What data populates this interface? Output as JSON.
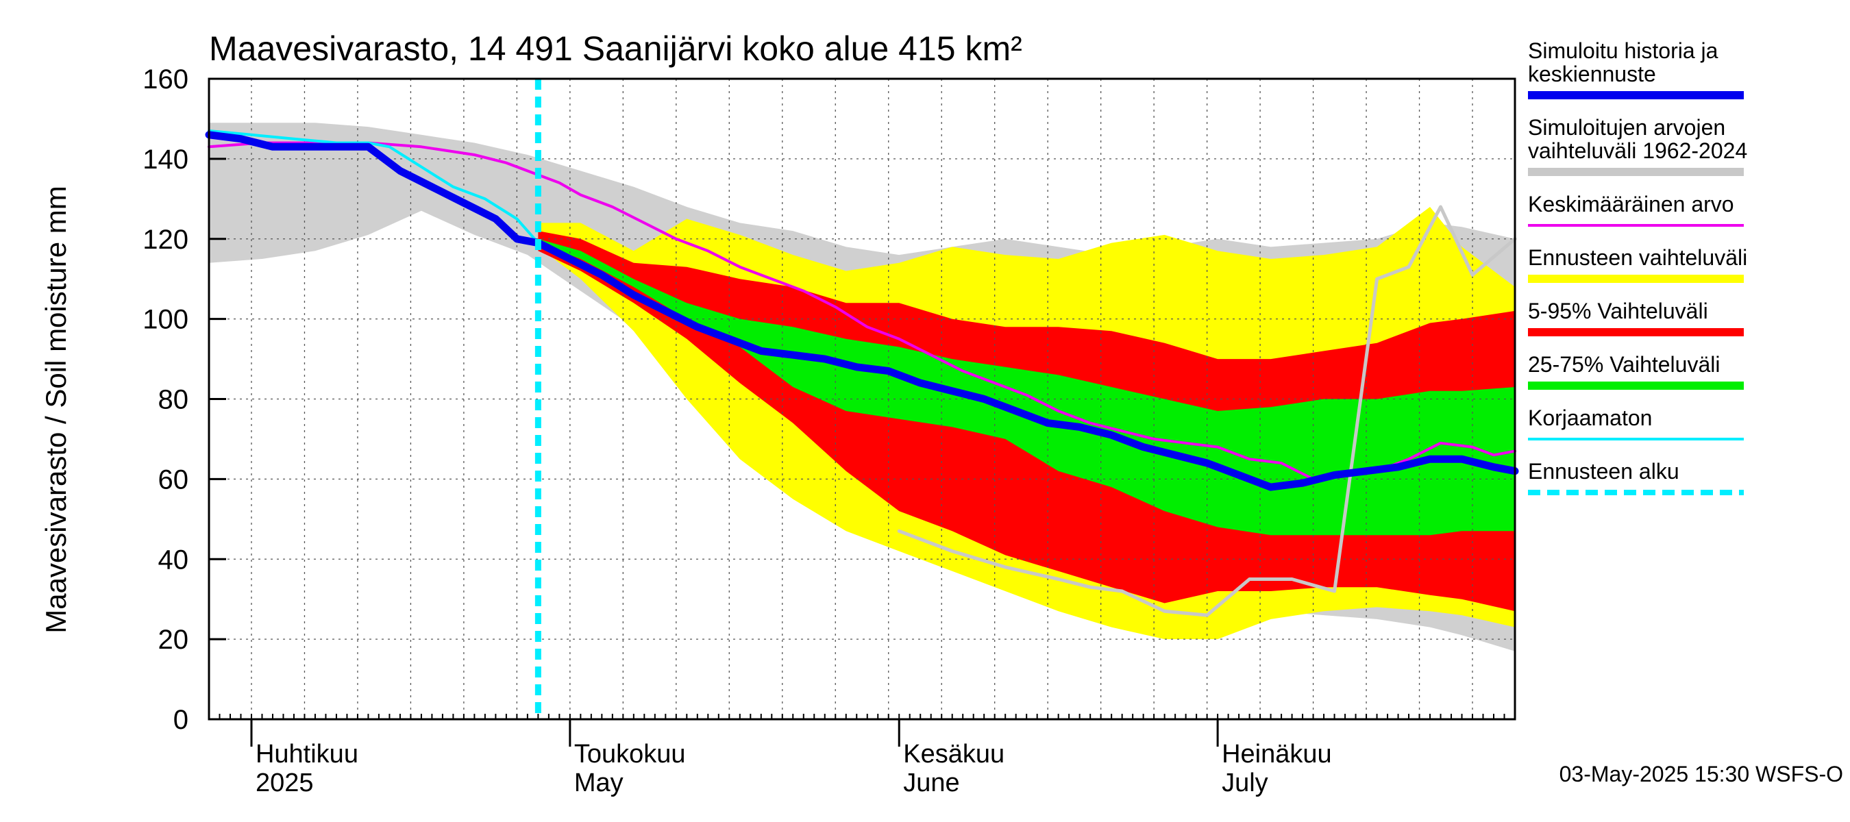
{
  "chart_data": {
    "type": "area",
    "title": "Maavesivarasto, 14 491 Saanijärvi koko alue 415 km²",
    "ylabel": "Maavesivarasto / Soil moisture   mm",
    "ylim": [
      0,
      160
    ],
    "yticks": [
      "0",
      "20",
      "40",
      "60",
      "80",
      "100",
      "120",
      "140",
      "160"
    ],
    "xlim_days": [
      0,
      123
    ],
    "x_axis_start": "2025-03-28",
    "forecast_start_day": 31,
    "months": [
      {
        "day": 4,
        "fi": "Huhtikuu",
        "en": "2025"
      },
      {
        "day": 34,
        "fi": "Toukokuu",
        "en": "May"
      },
      {
        "day": 65,
        "fi": "Kesäkuu",
        "en": "June"
      },
      {
        "day": 95,
        "fi": "Heinäkuu",
        "en": "July"
      }
    ],
    "legend": [
      {
        "label": "Simuloitu historia ja keskiennuste",
        "lines": [
          "Simuloitu historia ja",
          "keskiennuste"
        ],
        "color": "#0000ee",
        "style": "thick"
      },
      {
        "label": "Simuloitujen arvojen vaihteluväli 1962-2024",
        "lines": [
          "Simuloitujen arvojen",
          "vaihteluväli 1962-2024"
        ],
        "color": "#c8c8c8",
        "style": "band"
      },
      {
        "label": "Keskimääräinen arvo",
        "lines": [
          "Keskimääräinen arvo"
        ],
        "color": "#ee00ee",
        "style": "line"
      },
      {
        "label": "Ennusteen vaihteluväli",
        "lines": [
          "Ennusteen vaihteluväli"
        ],
        "color": "#ffff00",
        "style": "band"
      },
      {
        "label": "5-95% Vaihteluväli",
        "lines": [
          "5-95% Vaihteluväli"
        ],
        "color": "#ff0000",
        "style": "band"
      },
      {
        "label": "25-75% Vaihteluväli",
        "lines": [
          "25-75% Vaihteluväli"
        ],
        "color": "#00ee00",
        "style": "band"
      },
      {
        "label": "Korjaamaton",
        "lines": [
          "Korjaamaton"
        ],
        "color": "#00eeff",
        "style": "line"
      },
      {
        "label": "Ennusteen alku",
        "lines": [
          "Ennusteen alku"
        ],
        "color": "#00eeff",
        "style": "dashed"
      }
    ],
    "series": {
      "hist_range": {
        "x": [
          0,
          5,
          10,
          15,
          20,
          25,
          30,
          35,
          40,
          45,
          50,
          55,
          60,
          65,
          70,
          75,
          80,
          85,
          90,
          95,
          100,
          105,
          110,
          115,
          118,
          123
        ],
        "high": [
          149,
          149,
          149,
          148,
          146,
          144,
          141,
          137,
          133,
          128,
          124,
          122,
          118,
          116,
          118,
          120,
          118,
          116,
          118,
          120,
          118,
          119,
          120,
          124,
          123,
          120
        ],
        "low": [
          114,
          115,
          117,
          121,
          127,
          121,
          116,
          107,
          98,
          89,
          80,
          70,
          60,
          52,
          43,
          39,
          35,
          31,
          28,
          27,
          27,
          26,
          25,
          23,
          21,
          17
        ]
      },
      "forecast_range": {
        "x": [
          31,
          35,
          40,
          45,
          50,
          55,
          60,
          65,
          70,
          75,
          80,
          85,
          90,
          95,
          100,
          105,
          110,
          115,
          118,
          123
        ],
        "high": [
          124,
          124,
          117,
          125,
          121,
          116,
          112,
          114,
          118,
          116,
          115,
          119,
          121,
          117,
          115,
          116,
          118,
          128,
          118,
          108
        ],
        "low": [
          118,
          110,
          97,
          80,
          65,
          55,
          47,
          42,
          37,
          32,
          27,
          23,
          20,
          20,
          25,
          27,
          28,
          27,
          26,
          23
        ]
      },
      "p5_95": {
        "x": [
          31,
          35,
          40,
          45,
          50,
          55,
          60,
          65,
          70,
          75,
          80,
          85,
          90,
          95,
          100,
          105,
          110,
          115,
          118,
          123
        ],
        "high": [
          122,
          120,
          114,
          113,
          110,
          108,
          104,
          104,
          100,
          98,
          98,
          97,
          94,
          90,
          90,
          92,
          94,
          99,
          100,
          102
        ],
        "low": [
          117,
          112,
          104,
          95,
          84,
          74,
          62,
          52,
          47,
          41,
          37,
          33,
          29,
          32,
          32,
          33,
          33,
          31,
          30,
          27
        ]
      },
      "p25_75": {
        "x": [
          31,
          35,
          40,
          45,
          50,
          55,
          60,
          65,
          70,
          75,
          80,
          85,
          90,
          95,
          100,
          105,
          110,
          115,
          118,
          123
        ],
        "high": [
          120,
          117,
          110,
          104,
          100,
          98,
          95,
          93,
          90,
          88,
          86,
          83,
          80,
          77,
          78,
          80,
          80,
          82,
          82,
          83
        ],
        "low": [
          119,
          115,
          108,
          100,
          93,
          83,
          77,
          75,
          73,
          70,
          62,
          58,
          52,
          48,
          46,
          46,
          46,
          46,
          47,
          47
        ]
      },
      "median": {
        "x": [
          0,
          3,
          6,
          9,
          12,
          15,
          18,
          21,
          24,
          27,
          29,
          31,
          34,
          37,
          40,
          43,
          46,
          49,
          52,
          55,
          58,
          61,
          64,
          67,
          70,
          73,
          76,
          79,
          82,
          85,
          88,
          91,
          94,
          97,
          100,
          103,
          106,
          109,
          112,
          115,
          118,
          121,
          123
        ],
        "y": [
          146,
          145,
          143,
          143,
          143,
          143,
          137,
          133,
          129,
          125,
          120,
          119,
          115,
          111,
          106,
          102,
          98,
          95,
          92,
          91,
          90,
          88,
          87,
          84,
          82,
          80,
          77,
          74,
          73,
          71,
          68,
          66,
          64,
          61,
          58,
          59,
          61,
          62,
          63,
          65,
          65,
          63,
          62
        ]
      },
      "mean": {
        "x": [
          0,
          5,
          10,
          15,
          20,
          25,
          28,
          31,
          33,
          35,
          38,
          41,
          44,
          47,
          50,
          53,
          56,
          59,
          62,
          65,
          68,
          71,
          74,
          77,
          80,
          83,
          86,
          89,
          92,
          95,
          98,
          101,
          104,
          107,
          110,
          113,
          116,
          119,
          121,
          123
        ],
        "y": [
          143,
          144,
          144,
          144,
          143,
          141,
          139,
          136,
          134,
          131,
          128,
          124,
          120,
          117,
          113,
          110,
          107,
          103,
          98,
          95,
          91,
          87,
          84,
          81,
          77,
          74,
          72,
          70,
          69,
          68,
          65,
          64,
          60,
          61,
          62,
          65,
          69,
          68,
          66,
          67
        ]
      },
      "uncorrected": {
        "x": [
          0,
          4,
          8,
          12,
          15,
          17,
          20,
          23,
          26,
          29,
          31
        ],
        "y": [
          147,
          146,
          145,
          144,
          144,
          143,
          138,
          133,
          130,
          125,
          119
        ]
      },
      "gray_member": {
        "x": [
          65,
          70,
          75,
          80,
          83,
          86,
          90,
          94,
          98,
          102,
          106,
          110,
          113,
          116,
          119,
          123
        ],
        "y": [
          47,
          42,
          38,
          35,
          33,
          32,
          27,
          26,
          35,
          35,
          32,
          110,
          113,
          128,
          111,
          120
        ]
      }
    }
  },
  "footer": {
    "timestamp": "03-May-2025 15:30 WSFS-O"
  }
}
